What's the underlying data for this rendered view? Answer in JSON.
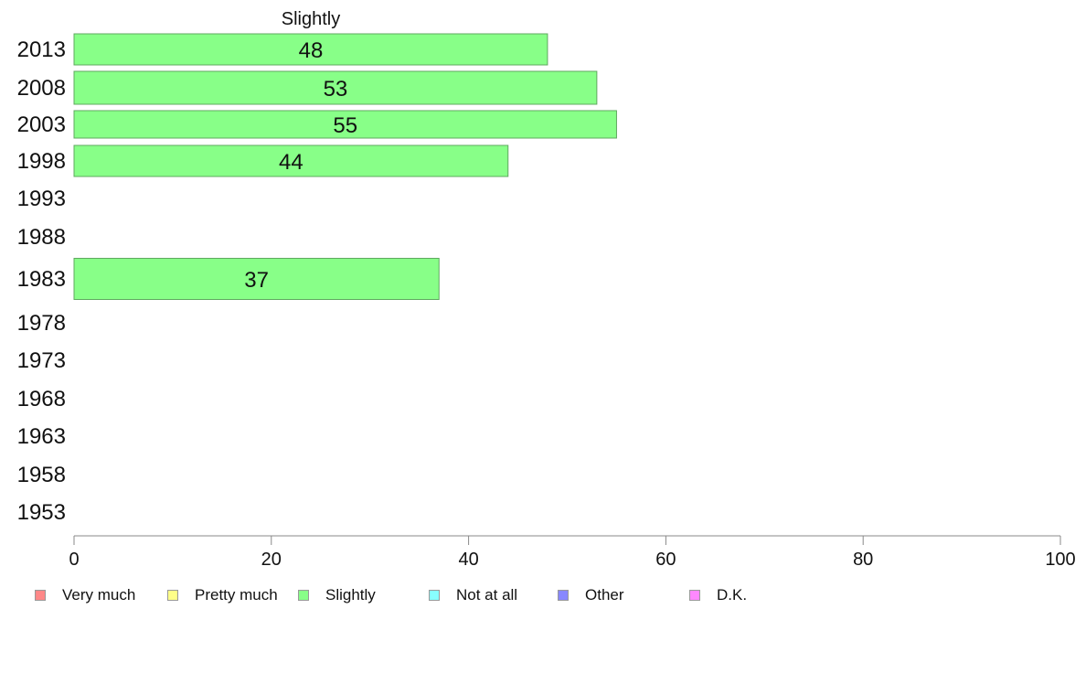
{
  "chart_data": {
    "type": "bar",
    "orientation": "horizontal",
    "title": "Slightly",
    "categories": [
      "2013",
      "2008",
      "2003",
      "1998",
      "1993",
      "1988",
      "1983",
      "1978",
      "1973",
      "1968",
      "1963",
      "1958",
      "1953"
    ],
    "series": [
      {
        "name": "Slightly",
        "values": [
          48,
          53,
          55,
          44,
          null,
          null,
          37,
          null,
          null,
          null,
          null,
          null,
          null
        ]
      }
    ],
    "data_labels": [
      "48",
      "53",
      "55",
      "44",
      "",
      "",
      "37",
      "",
      "",
      "",
      "",
      "",
      ""
    ],
    "xlim": [
      0,
      100
    ],
    "xticks": [
      "0",
      "20",
      "40",
      "60",
      "80",
      "100"
    ],
    "grid": false,
    "bar_color": "#88ff88",
    "bar_border": "#5fa85f",
    "legend_position": "bottom",
    "legend": [
      {
        "label": "Very much",
        "color": "#ff8888"
      },
      {
        "label": "Pretty much",
        "color": "#ffff88"
      },
      {
        "label": "Slightly",
        "color": "#88ff88"
      },
      {
        "label": "Not at all",
        "color": "#88ffff"
      },
      {
        "label": "Other",
        "color": "#8888ff"
      },
      {
        "label": "D.K.",
        "color": "#ff88ff"
      }
    ]
  }
}
